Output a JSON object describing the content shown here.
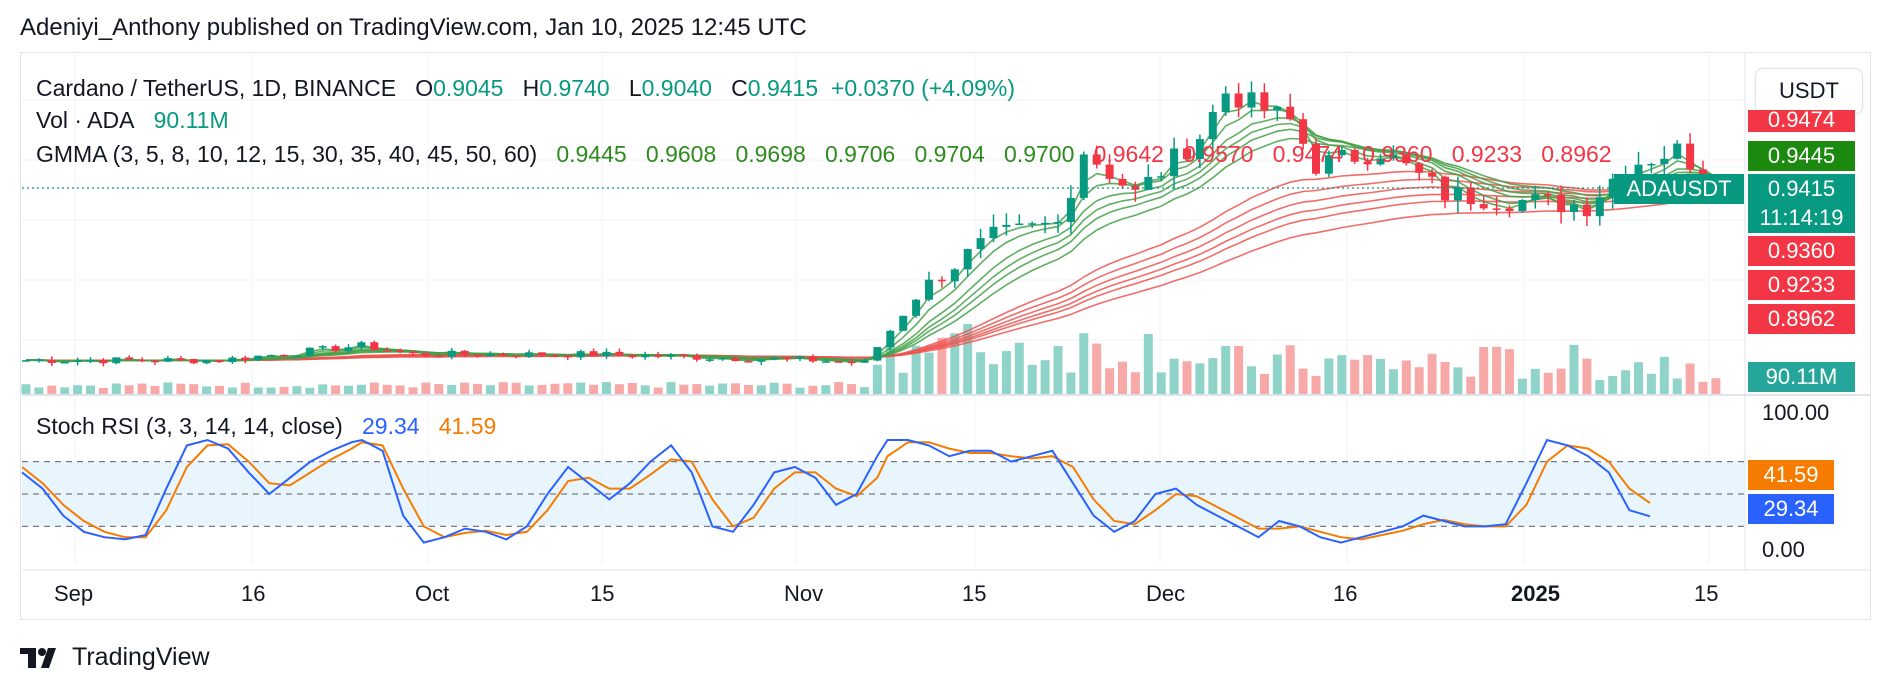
{
  "header": {
    "publisher_line": "Adeniyi_Anthony published on TradingView.com, Jan 10, 2025 12:45 UTC"
  },
  "legend": {
    "symbol": "Cardano / TetherUS, 1D, BINANCE",
    "o_label": "O",
    "o_value": "0.9045",
    "h_label": "H",
    "h_value": "0.9740",
    "l_label": "L",
    "l_value": "0.9040",
    "c_label": "C",
    "c_value": "0.9415",
    "change": "+0.0370 (+4.09%)",
    "vol_label": "Vol · ADA",
    "vol_value": "90.11M",
    "gmma_label": "GMMA (3, 5, 8, 10, 12, 15, 30, 35, 40, 45, 50, 60)",
    "gmma_values": [
      "0.9445",
      "0.9608",
      "0.9698",
      "0.9706",
      "0.9704",
      "0.9700",
      "0.9642",
      "0.9570",
      "0.9474",
      "0.9360",
      "0.9233",
      "0.8962"
    ],
    "stoch_label": "Stoch RSI (3, 3, 14, 14, close)",
    "stoch_k": "29.34",
    "stoch_d": "41.59"
  },
  "currency_button": "USDT",
  "price_tags": {
    "top_partial": "0.9474",
    "gmma_fast": "0.9445",
    "symbol_tag": "ADAUSDT",
    "last_price": "0.9415",
    "countdown": "11:14:19",
    "tag_9360": "0.9360",
    "tag_9233": "0.9233",
    "tag_8962": "0.8962",
    "volume": "90.11M",
    "stoch_d": "41.59",
    "stoch_k": "29.34"
  },
  "stoch_axis": [
    "100.00",
    "0.00"
  ],
  "x_axis": {
    "labels": [
      "Sep",
      "16",
      "Oct",
      "15",
      "Nov",
      "15",
      "Dec",
      "16",
      "2025",
      "15"
    ],
    "bold_label": "2025"
  },
  "colors": {
    "up": "#089981",
    "down": "#f23645",
    "gmma_short": "#43a047",
    "gmma_long": "#ef5350",
    "stoch_k": "#2962ff",
    "stoch_d": "#f57c00",
    "stoch_band": "#e3f2fd"
  },
  "footer": {
    "brand": "TradingView"
  },
  "chart_data": [
    {
      "type": "candlestick",
      "symbol": "ADAUSDT",
      "x_labels": [
        "Sep",
        "16",
        "Oct",
        "15",
        "Nov",
        "15",
        "Dec",
        "16",
        "2025",
        "15"
      ],
      "last_price": 0.9415,
      "open": 0.9045,
      "high": 0.974,
      "low": 0.904,
      "close": 0.9415,
      "trend_close": [
        [
          "Sep 1",
          0.33
        ],
        [
          "Sep 16",
          0.33
        ],
        [
          "Sep 27",
          0.38
        ],
        [
          "Oct 1",
          0.35
        ],
        [
          "Oct 15",
          0.35
        ],
        [
          "Nov 1",
          0.33
        ],
        [
          "Nov 5",
          0.32
        ],
        [
          "Nov 10",
          0.6
        ],
        [
          "Nov 15",
          0.75
        ],
        [
          "Nov 20",
          0.8
        ],
        [
          "Nov 22",
          1.05
        ],
        [
          "Nov 26",
          0.9
        ],
        [
          "Dec 1",
          1.1
        ],
        [
          "Dec 3",
          1.25
        ],
        [
          "Dec 8",
          1.15
        ],
        [
          "Dec 10",
          1.0
        ],
        [
          "Dec 15",
          1.05
        ],
        [
          "Dec 20",
          0.9
        ],
        [
          "Dec 25",
          0.88
        ],
        [
          "Dec 31",
          0.86
        ],
        [
          "Jan 3",
          1.0
        ],
        [
          "Jan 7",
          1.05
        ],
        [
          "Jan 10",
          0.9415
        ]
      ]
    },
    {
      "type": "line",
      "title": "GMMA (3, 5, 8, 10, 12, 15, 30, 35, 40, 45, 50, 60)",
      "series": [
        {
          "name": "3",
          "last": 0.9445
        },
        {
          "name": "5",
          "last": 0.9608
        },
        {
          "name": "8",
          "last": 0.9698
        },
        {
          "name": "10",
          "last": 0.9706
        },
        {
          "name": "12",
          "last": 0.9704
        },
        {
          "name": "15",
          "last": 0.97
        },
        {
          "name": "30",
          "last": 0.9642
        },
        {
          "name": "35",
          "last": 0.957
        },
        {
          "name": "40",
          "last": 0.9474
        },
        {
          "name": "45",
          "last": 0.936
        },
        {
          "name": "50",
          "last": 0.9233
        },
        {
          "name": "60",
          "last": 0.8962
        }
      ]
    },
    {
      "type": "bar",
      "title": "Vol · ADA",
      "last": "90.11M"
    },
    {
      "type": "line",
      "title": "Stoch RSI (3, 3, 14, 14, close)",
      "ylim": [
        0,
        100
      ],
      "bands": [
        80,
        50,
        20
      ],
      "series": [
        {
          "name": "K",
          "last": 29.34,
          "values": [
            [
              0,
              70
            ],
            [
              4,
              55
            ],
            [
              8,
              30
            ],
            [
              12,
              15
            ],
            [
              16,
              10
            ],
            [
              20,
              8
            ],
            [
              24,
              12
            ],
            [
              28,
              55
            ],
            [
              32,
              95
            ],
            [
              36,
              100
            ],
            [
              40,
              92
            ],
            [
              44,
              70
            ],
            [
              48,
              50
            ],
            [
              52,
              65
            ],
            [
              56,
              80
            ],
            [
              60,
              90
            ],
            [
              64,
              98
            ],
            [
              66,
              100
            ],
            [
              70,
              90
            ],
            [
              74,
              30
            ],
            [
              78,
              5
            ],
            [
              82,
              10
            ],
            [
              86,
              18
            ],
            [
              90,
              15
            ],
            [
              94,
              8
            ],
            [
              98,
              20
            ],
            [
              102,
              50
            ],
            [
              106,
              75
            ],
            [
              110,
              60
            ],
            [
              114,
              45
            ],
            [
              118,
              60
            ],
            [
              122,
              80
            ],
            [
              126,
              95
            ],
            [
              130,
              70
            ],
            [
              134,
              20
            ],
            [
              138,
              15
            ],
            [
              142,
              40
            ],
            [
              146,
              70
            ],
            [
              150,
              75
            ],
            [
              154,
              65
            ],
            [
              158,
              40
            ],
            [
              162,
              50
            ],
            [
              166,
              85
            ],
            [
              168,
              100
            ],
            [
              172,
              100
            ],
            [
              176,
              95
            ],
            [
              180,
              85
            ],
            [
              184,
              90
            ],
            [
              188,
              90
            ],
            [
              192,
              80
            ],
            [
              196,
              85
            ],
            [
              200,
              90
            ],
            [
              204,
              60
            ],
            [
              208,
              30
            ],
            [
              212,
              15
            ],
            [
              216,
              25
            ],
            [
              220,
              50
            ],
            [
              224,
              55
            ],
            [
              228,
              40
            ],
            [
              232,
              30
            ],
            [
              236,
              20
            ],
            [
              240,
              10
            ],
            [
              244,
              25
            ],
            [
              248,
              20
            ],
            [
              252,
              10
            ],
            [
              256,
              5
            ],
            [
              260,
              10
            ],
            [
              264,
              15
            ],
            [
              268,
              20
            ],
            [
              272,
              30
            ],
            [
              276,
              25
            ],
            [
              280,
              20
            ],
            [
              284,
              20
            ],
            [
              288,
              22
            ],
            [
              292,
              60
            ],
            [
              296,
              100
            ],
            [
              300,
              95
            ],
            [
              304,
              85
            ],
            [
              308,
              70
            ],
            [
              312,
              35
            ],
            [
              316,
              29.34
            ]
          ]
        },
        {
          "name": "D",
          "last": 41.59,
          "values": [
            [
              0,
              75
            ],
            [
              4,
              60
            ],
            [
              8,
              40
            ],
            [
              12,
              25
            ],
            [
              16,
              15
            ],
            [
              20,
              10
            ],
            [
              24,
              10
            ],
            [
              28,
              35
            ],
            [
              32,
              75
            ],
            [
              36,
              95
            ],
            [
              40,
              96
            ],
            [
              44,
              80
            ],
            [
              48,
              60
            ],
            [
              52,
              58
            ],
            [
              56,
              70
            ],
            [
              60,
              82
            ],
            [
              64,
              92
            ],
            [
              66,
              98
            ],
            [
              70,
              95
            ],
            [
              74,
              55
            ],
            [
              78,
              20
            ],
            [
              82,
              10
            ],
            [
              86,
              14
            ],
            [
              90,
              16
            ],
            [
              94,
              12
            ],
            [
              98,
              15
            ],
            [
              102,
              35
            ],
            [
              106,
              62
            ],
            [
              110,
              65
            ],
            [
              114,
              55
            ],
            [
              118,
              55
            ],
            [
              122,
              68
            ],
            [
              126,
              82
            ],
            [
              130,
              80
            ],
            [
              134,
              45
            ],
            [
              138,
              20
            ],
            [
              142,
              28
            ],
            [
              146,
              55
            ],
            [
              150,
              70
            ],
            [
              154,
              70
            ],
            [
              158,
              55
            ],
            [
              162,
              48
            ],
            [
              166,
              65
            ],
            [
              168,
              85
            ],
            [
              172,
              98
            ],
            [
              176,
              98
            ],
            [
              180,
              92
            ],
            [
              184,
              88
            ],
            [
              188,
              88
            ],
            [
              192,
              85
            ],
            [
              196,
              83
            ],
            [
              200,
              85
            ],
            [
              204,
              75
            ],
            [
              208,
              45
            ],
            [
              212,
              25
            ],
            [
              216,
              22
            ],
            [
              220,
              35
            ],
            [
              224,
              50
            ],
            [
              228,
              48
            ],
            [
              232,
              38
            ],
            [
              236,
              28
            ],
            [
              240,
              18
            ],
            [
              244,
              18
            ],
            [
              248,
              20
            ],
            [
              252,
              15
            ],
            [
              256,
              10
            ],
            [
              260,
              8
            ],
            [
              264,
              12
            ],
            [
              268,
              16
            ],
            [
              272,
              22
            ],
            [
              276,
              26
            ],
            [
              280,
              22
            ],
            [
              284,
              20
            ],
            [
              288,
              20
            ],
            [
              292,
              40
            ],
            [
              296,
              80
            ],
            [
              300,
              95
            ],
            [
              304,
              92
            ],
            [
              308,
              80
            ],
            [
              312,
              55
            ],
            [
              316,
              41.59
            ]
          ]
        }
      ]
    }
  ]
}
